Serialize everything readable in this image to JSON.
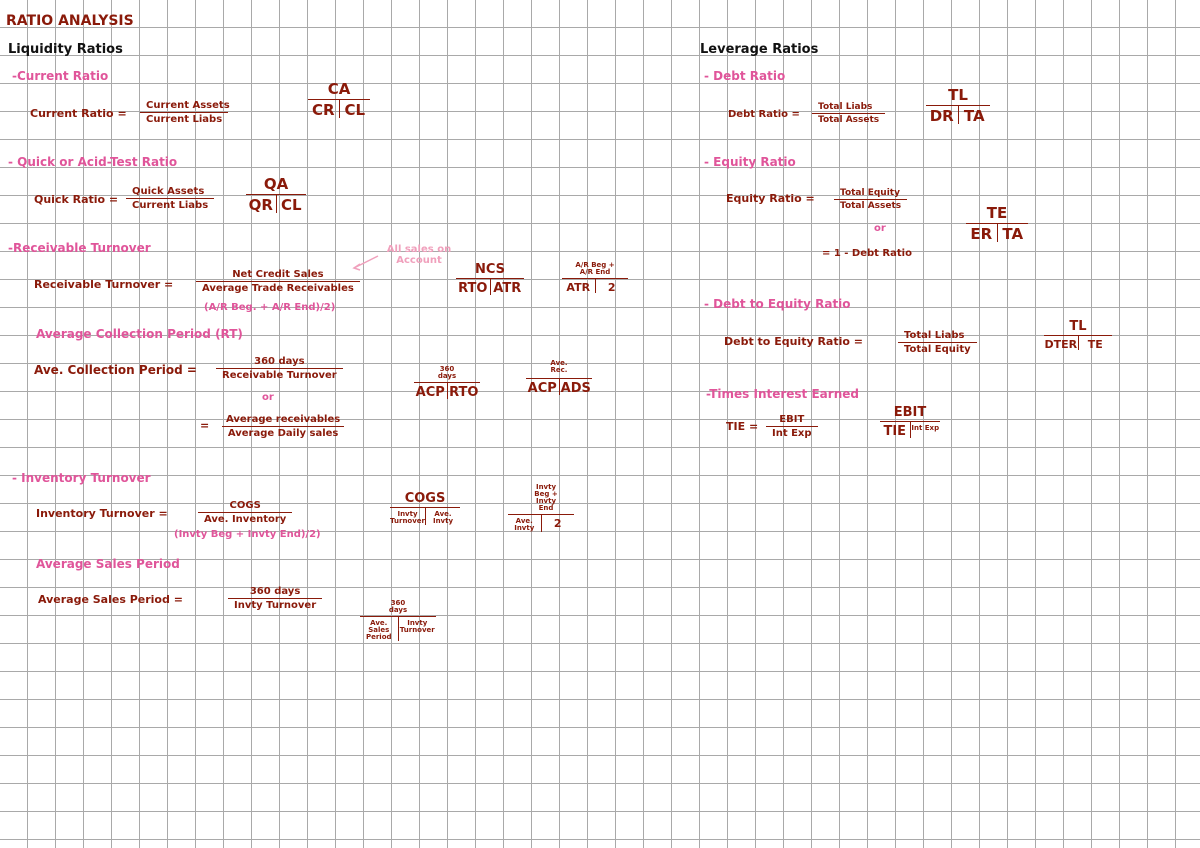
{
  "title": "RATIO ANALYSIS",
  "liquidity": {
    "heading": "Liquidity Ratios",
    "current": {
      "label": "-Current Ratio",
      "formula_lhs": "Current Ratio =",
      "num": "Current Assets",
      "den": "Current Liabs",
      "box_top": "CA",
      "box_left": "CR",
      "box_right": "CL"
    },
    "quick": {
      "label": "- Quick or Acid-Test Ratio",
      "formula_lhs": "Quick Ratio =",
      "num": "Quick Assets",
      "den": "Current Liabs",
      "box_top": "QA",
      "box_left": "QR",
      "box_right": "CL"
    },
    "receivable": {
      "label": "-Receivable Turnover",
      "formula_lhs": "Receivable Turnover =",
      "num": "Net Credit Sales",
      "den": "Average Trade Receivables",
      "den_note": "(A/R Beg. + A/R End)/2)",
      "note": "All sales on Account",
      "box1_top": "NCS",
      "box1_left": "RTO",
      "box1_right": "ATR",
      "box2_top": "A/R Beg + A/R End",
      "box2_left": "ATR",
      "box2_right": "2"
    },
    "acp": {
      "label": "Average Collection Period (RT)",
      "formula_lhs": "Ave. Collection Period =",
      "num": "360 days",
      "den": "Receivable Turnover",
      "or": "or",
      "eq": "=",
      "num2": "Average receivables",
      "den2": "Average Daily sales",
      "box1_top": "360 days",
      "box1_left": "ACP",
      "box1_right": "RTO",
      "box2_top": "Ave. Rec.",
      "box2_left": "ACP",
      "box2_right": "ADS"
    },
    "inventory": {
      "label": "- Inventory Turnover",
      "formula_lhs": "Inventory Turnover =",
      "num": "COGS",
      "den": "Ave. Inventory",
      "den_note": "(Invty Beg + Invty End)/2)",
      "box1_top": "COGS",
      "box1_left": "Invty Turnover",
      "box1_right": "Ave. Invty",
      "box2_top": "Invty Beg + Invty End",
      "box2_left": "Ave. Invty",
      "box2_right": "2"
    },
    "asp": {
      "label": "Average Sales Period",
      "formula_lhs": "Average Sales Period =",
      "num": "360 days",
      "den": "Invty Turnover",
      "box_top": "360 days",
      "box_left": "Ave. Sales Period",
      "box_right": "Invty Turnover"
    }
  },
  "leverage": {
    "heading": "Leverage Ratios",
    "debt": {
      "label": "- Debt Ratio",
      "formula_lhs": "Debt Ratio =",
      "num": "Total Liabs",
      "den": "Total Assets",
      "box_top": "TL",
      "box_left": "DR",
      "box_right": "TA"
    },
    "equity": {
      "label": "- Equity Ratio",
      "formula_lhs": "Equity Ratio =",
      "num": "Total Equity",
      "den": "Total Assets",
      "or": "or",
      "alt": "= 1 - Debt Ratio",
      "box_top": "TE",
      "box_left": "ER",
      "box_right": "TA"
    },
    "dte": {
      "label": "- Debt to Equity Ratio",
      "formula_lhs": "Debt to Equity Ratio =",
      "num": "Total Liabs",
      "den": "Total Equity",
      "box_top": "TL",
      "box_left": "DTER",
      "box_right": "TE"
    },
    "tie": {
      "label": "-Times Interest Earned",
      "formula_lhs": "TIE =",
      "num": "EBIT",
      "den": "Int Exp",
      "box_top": "EBIT",
      "box_left": "TIE",
      "box_right": "Int Exp"
    }
  }
}
